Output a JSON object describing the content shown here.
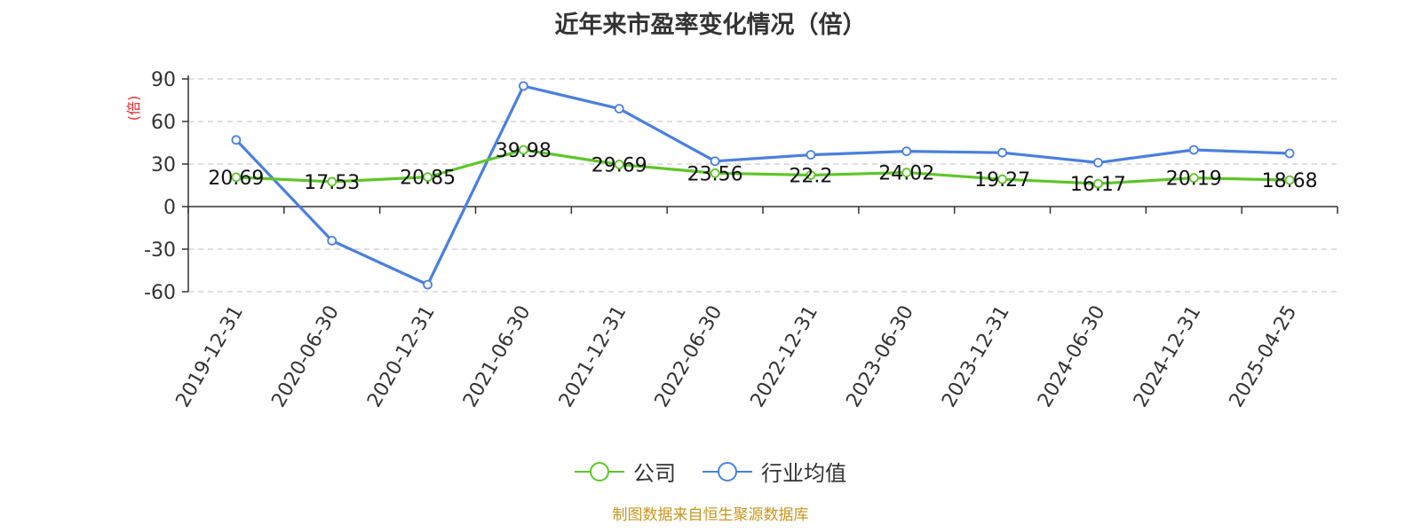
{
  "chart_data": {
    "type": "line",
    "title": "近年来市盈率变化情况（倍）",
    "ylabel": "(倍)",
    "xlabel": "",
    "categories": [
      "2019-12-31",
      "2020-06-30",
      "2020-12-31",
      "2021-06-30",
      "2021-12-31",
      "2022-06-30",
      "2022-12-31",
      "2023-06-30",
      "2023-12-31",
      "2024-06-30",
      "2024-12-31",
      "2025-04-25"
    ],
    "ylim": [
      -60,
      90
    ],
    "yticks": [
      90,
      60,
      30,
      0,
      -30,
      -60
    ],
    "grid": true,
    "legend_position": "bottom-center",
    "series": [
      {
        "name": "公司",
        "color": "#5ec628",
        "values": [
          20.69,
          17.53,
          20.85,
          39.98,
          29.69,
          23.56,
          22.2,
          24.02,
          19.27,
          16.17,
          20.19,
          18.68
        ],
        "labels": [
          "20.69",
          "17.53",
          "20.85",
          "39.98",
          "29.69",
          "23.56",
          "22.2",
          "24.02",
          "19.27",
          "16.17",
          "20.19",
          "18.68"
        ]
      },
      {
        "name": "行业均值",
        "color": "#4a7fe0",
        "values": [
          47,
          -24,
          -55,
          85,
          69,
          32,
          36.5,
          39,
          38,
          31,
          40,
          37.5
        ]
      }
    ]
  },
  "source_text": "制图数据来自恒生聚源数据库"
}
